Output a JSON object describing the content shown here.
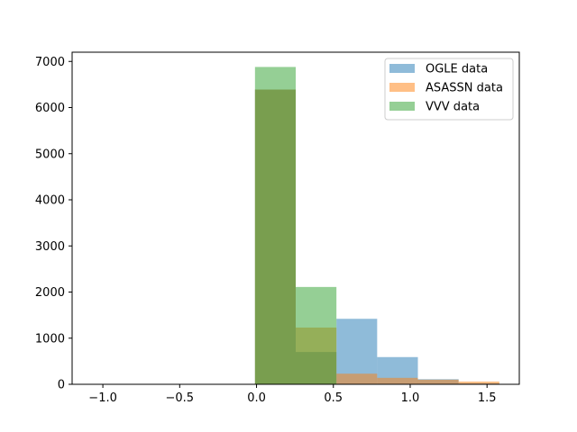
{
  "chart_data": {
    "type": "bar",
    "subtype": "overlapping-histogram",
    "title": "",
    "xlabel": "",
    "ylabel": "",
    "xlim": [
      -1.2,
      1.71
    ],
    "ylim": [
      0,
      7200
    ],
    "xticks": [
      -1.0,
      -0.5,
      0.0,
      0.5,
      1.0,
      1.5
    ],
    "xtick_labels": [
      "−1.0",
      "−0.5",
      "0.0",
      "0.5",
      "1.0",
      "1.5"
    ],
    "yticks": [
      0,
      1000,
      2000,
      3000,
      4000,
      5000,
      6000,
      7000
    ],
    "ytick_labels": [
      "0",
      "1000",
      "2000",
      "3000",
      "4000",
      "5000",
      "6000",
      "7000"
    ],
    "grid": false,
    "legend_position": "top-right",
    "alpha": 0.5,
    "series": [
      {
        "name": "OGLE data",
        "color": "#1f77b4",
        "bins": [
          {
            "x0": -0.01,
            "x1": 0.255,
            "value": 6390
          },
          {
            "x0": 0.255,
            "x1": 0.52,
            "value": 700
          },
          {
            "x0": 0.52,
            "x1": 0.785,
            "value": 1420
          },
          {
            "x0": 0.785,
            "x1": 1.05,
            "value": 590
          },
          {
            "x0": 1.05,
            "x1": 1.315,
            "value": 110
          },
          {
            "x0": 1.315,
            "x1": 1.58,
            "value": 20
          }
        ]
      },
      {
        "name": "ASASSN data",
        "color": "#ff7f0e",
        "bins": [
          {
            "x0": -0.01,
            "x1": 0.255,
            "value": 6390
          },
          {
            "x0": 0.255,
            "x1": 0.52,
            "value": 1230
          },
          {
            "x0": 0.52,
            "x1": 0.785,
            "value": 230
          },
          {
            "x0": 0.785,
            "x1": 1.05,
            "value": 140
          },
          {
            "x0": 1.05,
            "x1": 1.315,
            "value": 100
          },
          {
            "x0": 1.315,
            "x1": 1.58,
            "value": 60
          }
        ]
      },
      {
        "name": "VVV data",
        "color": "#2ca02c",
        "bins": [
          {
            "x0": -0.01,
            "x1": 0.255,
            "value": 6880
          },
          {
            "x0": 0.255,
            "x1": 0.52,
            "value": 2110
          },
          {
            "x0": 0.52,
            "x1": 0.785,
            "value": 0
          },
          {
            "x0": 0.785,
            "x1": 1.05,
            "value": 0
          },
          {
            "x0": 1.05,
            "x1": 1.315,
            "value": 0
          },
          {
            "x0": 1.315,
            "x1": 1.58,
            "value": 0
          }
        ]
      }
    ]
  }
}
